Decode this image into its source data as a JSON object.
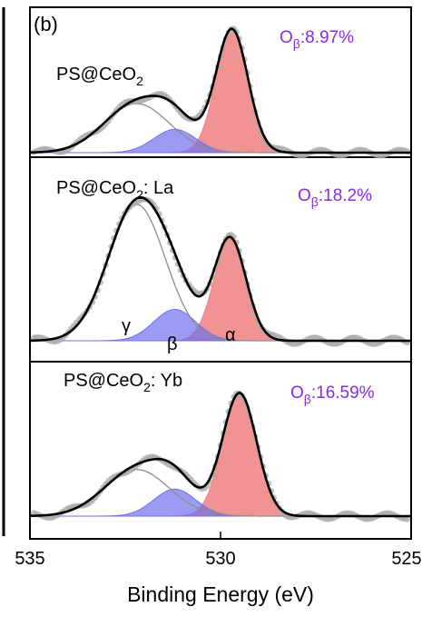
{
  "chart_data": {
    "type": "line",
    "panel_label": "(b)",
    "x_axis": {
      "label": "Binding Energy (eV)",
      "range": [
        535,
        525
      ],
      "reversed": true,
      "ticks": [
        "535",
        "530",
        "525"
      ]
    },
    "peak_labels": {
      "gamma": "γ",
      "beta": "β",
      "alpha": "α"
    },
    "components": [
      {
        "name": "α",
        "color": "#f08080"
      },
      {
        "name": "β",
        "color": "#7070ee"
      },
      {
        "name": "γ",
        "color": "#999999"
      }
    ],
    "spectra": [
      {
        "sample": {
          "main": "PS@CeO",
          "sub": "2",
          "suffix": ""
        },
        "percent": {
          "main": "O",
          "sub": "β",
          "value": ":8.97%"
        },
        "peaks": {
          "alpha": {
            "center": 529.7,
            "sigma": 0.42,
            "height": 1.0
          },
          "beta": {
            "center": 531.2,
            "sigma": 0.55,
            "height": 0.19
          },
          "gamma": {
            "center": 532.2,
            "sigma": 0.85,
            "height": 0.4
          }
        }
      },
      {
        "sample": {
          "main": "PS@CeO",
          "sub": "2",
          "suffix": ": La"
        },
        "percent": {
          "main": "O",
          "sub": "β",
          "value": ":18.2%"
        },
        "peaks": {
          "alpha": {
            "center": 529.75,
            "sigma": 0.42,
            "height": 0.75
          },
          "beta": {
            "center": 531.2,
            "sigma": 0.55,
            "height": 0.23
          },
          "gamma": {
            "center": 532.2,
            "sigma": 0.75,
            "height": 1.0
          }
        }
      },
      {
        "sample": {
          "main": "PS@CeO",
          "sub": "2",
          "suffix": ": Yb"
        },
        "percent": {
          "main": "O",
          "sub": "β",
          "value": ":16.59%"
        },
        "peaks": {
          "alpha": {
            "center": 529.5,
            "sigma": 0.45,
            "height": 1.0
          },
          "beta": {
            "center": 531.2,
            "sigma": 0.55,
            "height": 0.22
          },
          "gamma": {
            "center": 532.2,
            "sigma": 0.85,
            "height": 0.38
          }
        }
      }
    ]
  }
}
